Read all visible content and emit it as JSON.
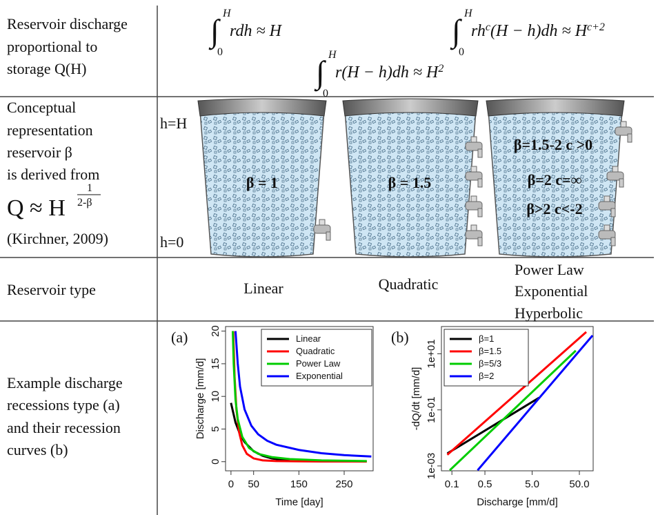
{
  "table": {
    "rows": [
      {
        "label": [
          "Reservoir discharge",
          "proportional to",
          "storage Q(H)"
        ],
        "formulas": [
          {
            "sign": "∫",
            "upper": "H",
            "lower": "0",
            "parts": [
              {
                "text": "rdh ≈ H"
              }
            ]
          },
          {
            "sign": "∫",
            "upper": "H",
            "lower": "0",
            "parts": [
              {
                "text": "r(H − h)dh ≈ H"
              },
              {
                "text": "2",
                "sup": true
              }
            ]
          },
          {
            "sign": "∫",
            "upper": "H",
            "lower": "0",
            "parts": [
              {
                "text": "rh"
              },
              {
                "text": "c",
                "sup": true
              },
              {
                "text": "(H − h)dh ≈ H"
              },
              {
                "text": "c+2",
                "sup": true
              }
            ]
          }
        ]
      },
      {
        "label": [
          "Conceptual",
          "representation",
          "reservoir β",
          "is derived from"
        ],
        "equation": {
          "base": "Q ≈ H",
          "numerator": "1",
          "denominator": "2-β"
        },
        "citation": "(Kirchner, 2009)",
        "levels": [
          "h=H",
          "h=0"
        ],
        "buckets": [
          {
            "labels": [
              "β = 1"
            ]
          },
          {
            "labels": [
              "β = 1.5"
            ]
          },
          {
            "labels": [
              "β=1.5-2 c >0",
              "β=2 c=∞",
              "β>2 c<-2"
            ]
          }
        ]
      },
      {
        "label": [
          "Reservoir type"
        ],
        "types": [
          [
            "Linear"
          ],
          [
            "Quadratic"
          ],
          [
            "Power Law",
            "Exponential",
            "Hyperbolic"
          ]
        ]
      },
      {
        "label": [
          "Example discharge",
          "recessions type (a)",
          "and their recession",
          "curves (b)"
        ]
      }
    ]
  },
  "chart_data": [
    {
      "type": "line",
      "panel_label": "(a)",
      "xlabel": "Time [day]",
      "ylabel": "Discharge [mm/d]",
      "xlim": [
        -12,
        314
      ],
      "ylim": [
        -1.4,
        20.7
      ],
      "xticks": [
        0,
        50,
        150,
        250
      ],
      "yticks": [
        0,
        5,
        10,
        15,
        20
      ],
      "legend": "upper right",
      "series": [
        {
          "name": "Linear",
          "color": "#000000",
          "x": [
            0,
            10,
            20,
            30,
            50,
            70,
            90,
            110,
            130
          ],
          "values": [
            9,
            6,
            4.2,
            3,
            1.6,
            0.9,
            0.5,
            0.3,
            0.2
          ]
        },
        {
          "name": "Quadratic",
          "color": "#ff0000",
          "x": [
            5,
            8,
            12,
            18,
            25,
            35,
            50,
            70,
            100,
            150,
            200,
            300
          ],
          "values": [
            20,
            13,
            8,
            4.5,
            2.5,
            1.2,
            0.5,
            0.2,
            0.1,
            0.05,
            0.03,
            0.02
          ]
        },
        {
          "name": "Power Law",
          "color": "#00cc00",
          "x": [
            4,
            6,
            10,
            15,
            25,
            40,
            60,
            90,
            130,
            200,
            300
          ],
          "values": [
            20,
            15,
            9.5,
            6.5,
            3.8,
            2.1,
            1.2,
            0.7,
            0.4,
            0.2,
            0.1
          ]
        },
        {
          "name": "Exponential",
          "color": "#0000ff",
          "x": [
            10,
            15,
            20,
            30,
            45,
            60,
            80,
            100,
            150,
            200,
            250,
            310
          ],
          "values": [
            20,
            15,
            11.5,
            8,
            5.5,
            4.2,
            3.2,
            2.6,
            1.8,
            1.3,
            1.0,
            0.8
          ]
        }
      ]
    },
    {
      "type": "line",
      "panel_label": "(b)",
      "xlabel": "Discharge [mm/d]",
      "ylabel": "-dQ/dt [mm/d]",
      "log_x": true,
      "log_y": true,
      "xlim": [
        0.06,
        98
      ],
      "ylim": [
        0.00067,
        94
      ],
      "xticks": [
        0.1,
        0.5,
        {
          "value": 5,
          "label": "5.0"
        },
        {
          "value": 50,
          "label": "50.0"
        }
      ],
      "yticks": [
        {
          "value": 0.001,
          "label": "1e-03"
        },
        {
          "value": 0.1,
          "label": "1e-01"
        },
        {
          "value": 10,
          "label": "1e+01"
        }
      ],
      "legend": "upper left",
      "series": [
        {
          "name": "β=1",
          "color": "#000000",
          "x": [
            0.08,
            7
          ],
          "values": [
            0.0028,
            0.27
          ]
        },
        {
          "name": "β=1.5",
          "color": "#ff0000",
          "x": [
            0.08,
            70
          ],
          "values": [
            0.0025,
            60
          ]
        },
        {
          "name": "β=5/3",
          "color": "#00cc00",
          "x": [
            0.09,
            42
          ],
          "values": [
            0.0007,
            13
          ]
        },
        {
          "name": "β=2",
          "color": "#0000ff",
          "x": [
            0.35,
            95
          ],
          "values": [
            0.0007,
            45
          ]
        }
      ]
    }
  ]
}
